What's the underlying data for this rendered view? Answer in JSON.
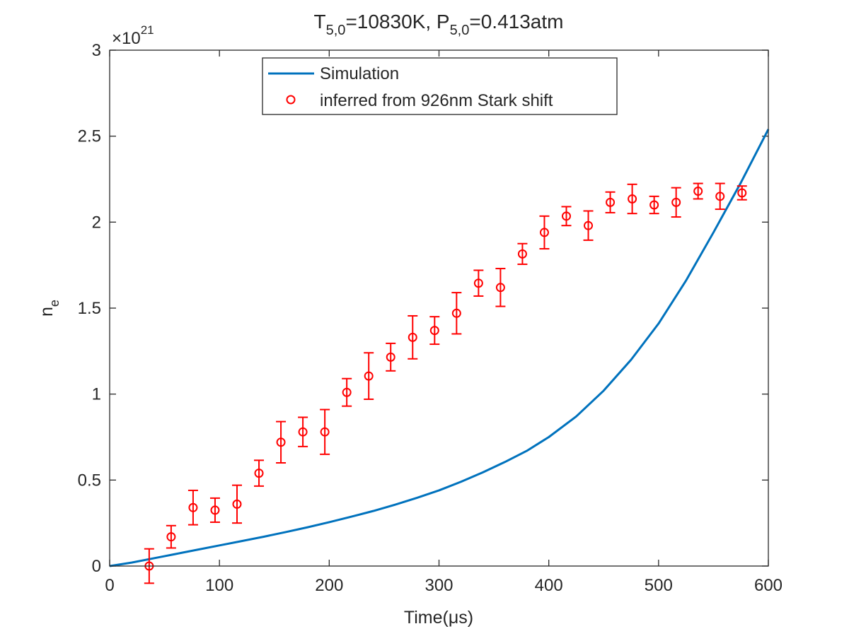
{
  "chart_data": {
    "type": "scatter",
    "title": {
      "base1": "T",
      "sub1": "5,0",
      "rest1": "=10830K, P",
      "sub2": "5,0",
      "rest2": "=0.413atm"
    },
    "xlabel": "Time(μs)",
    "ylabel": {
      "base": "n",
      "sub": "e"
    },
    "exponent_label": {
      "base": "×10",
      "sup": "21"
    },
    "xlim": [
      0,
      600
    ],
    "ylim": [
      0,
      3
    ],
    "xticks": [
      0,
      100,
      200,
      300,
      400,
      500,
      600
    ],
    "yticks": [
      0,
      0.5,
      1,
      1.5,
      2,
      2.5,
      3
    ],
    "ytick_labels": [
      "0",
      "0.5",
      "1",
      "1.5",
      "2",
      "2.5",
      "3"
    ],
    "grid": false,
    "legend_position": "top-center",
    "series": [
      {
        "name": "Simulation",
        "kind": "line",
        "color": "#0072BD",
        "x": [
          0,
          20,
          40,
          60,
          80,
          100,
          120,
          140,
          160,
          180,
          200,
          220,
          240,
          260,
          280,
          300,
          320,
          340,
          360,
          380,
          400,
          425,
          450,
          475,
          500,
          525,
          550,
          575,
          600
        ],
        "y": [
          0,
          0.02,
          0.045,
          0.07,
          0.095,
          0.12,
          0.145,
          0.17,
          0.197,
          0.225,
          0.255,
          0.287,
          0.32,
          0.357,
          0.397,
          0.44,
          0.49,
          0.545,
          0.605,
          0.67,
          0.75,
          0.87,
          1.02,
          1.2,
          1.41,
          1.66,
          1.94,
          2.23,
          2.54
        ]
      },
      {
        "name": "inferred from 926nm Stark shift",
        "kind": "errorbar",
        "color": "#FF0000",
        "x": [
          36,
          56,
          76,
          96,
          116,
          136,
          156,
          176,
          196,
          216,
          236,
          256,
          276,
          296,
          316,
          336,
          356,
          376,
          396,
          416,
          436,
          456,
          476,
          496,
          516,
          536,
          556,
          576
        ],
        "y": [
          0.0,
          0.17,
          0.34,
          0.325,
          0.36,
          0.54,
          0.72,
          0.78,
          0.78,
          1.01,
          1.105,
          1.215,
          1.33,
          1.37,
          1.47,
          1.645,
          1.62,
          1.815,
          1.94,
          2.035,
          1.98,
          2.115,
          2.135,
          2.1,
          2.115,
          2.18,
          2.15,
          2.17
        ],
        "err": [
          0.1,
          0.065,
          0.1,
          0.07,
          0.11,
          0.075,
          0.12,
          0.085,
          0.13,
          0.08,
          0.135,
          0.08,
          0.125,
          0.08,
          0.12,
          0.075,
          0.11,
          0.06,
          0.095,
          0.055,
          0.085,
          0.06,
          0.085,
          0.05,
          0.085,
          0.045,
          0.075,
          0.04
        ]
      }
    ]
  }
}
